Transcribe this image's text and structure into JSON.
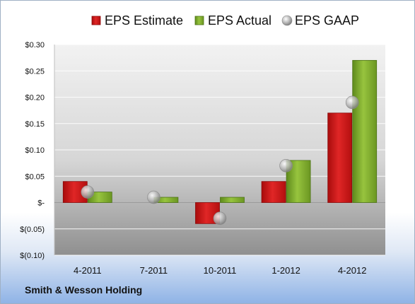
{
  "chart_data": {
    "type": "bar",
    "categories": [
      "4-2011",
      "7-2011",
      "10-2011",
      "1-2012",
      "4-2012"
    ],
    "series": [
      {
        "name": "EPS Estimate",
        "kind": "bar",
        "color": "#cc1111",
        "values": [
          0.04,
          0.0,
          -0.04,
          0.04,
          0.17
        ]
      },
      {
        "name": "EPS Actual",
        "kind": "bar",
        "color": "#7aa32a",
        "values": [
          0.02,
          0.01,
          0.01,
          0.08,
          0.27
        ]
      },
      {
        "name": "EPS GAAP",
        "kind": "marker",
        "color": "#a7a7a7",
        "values": [
          0.02,
          0.01,
          -0.03,
          0.07,
          0.19
        ]
      }
    ],
    "ylim": [
      -0.1,
      0.3
    ],
    "yticks": [
      0.3,
      0.25,
      0.2,
      0.15,
      0.1,
      0.05,
      0.0,
      -0.05,
      -0.1
    ],
    "ytick_labels": [
      "$0.30",
      "$0.25",
      "$0.20",
      "$0.15",
      "$0.10",
      "$0.05",
      "$-",
      "$(0.05)",
      "$(0.10)"
    ],
    "grid": true,
    "legend": "top"
  },
  "footer": {
    "company": "Smith & Wesson Holding"
  }
}
